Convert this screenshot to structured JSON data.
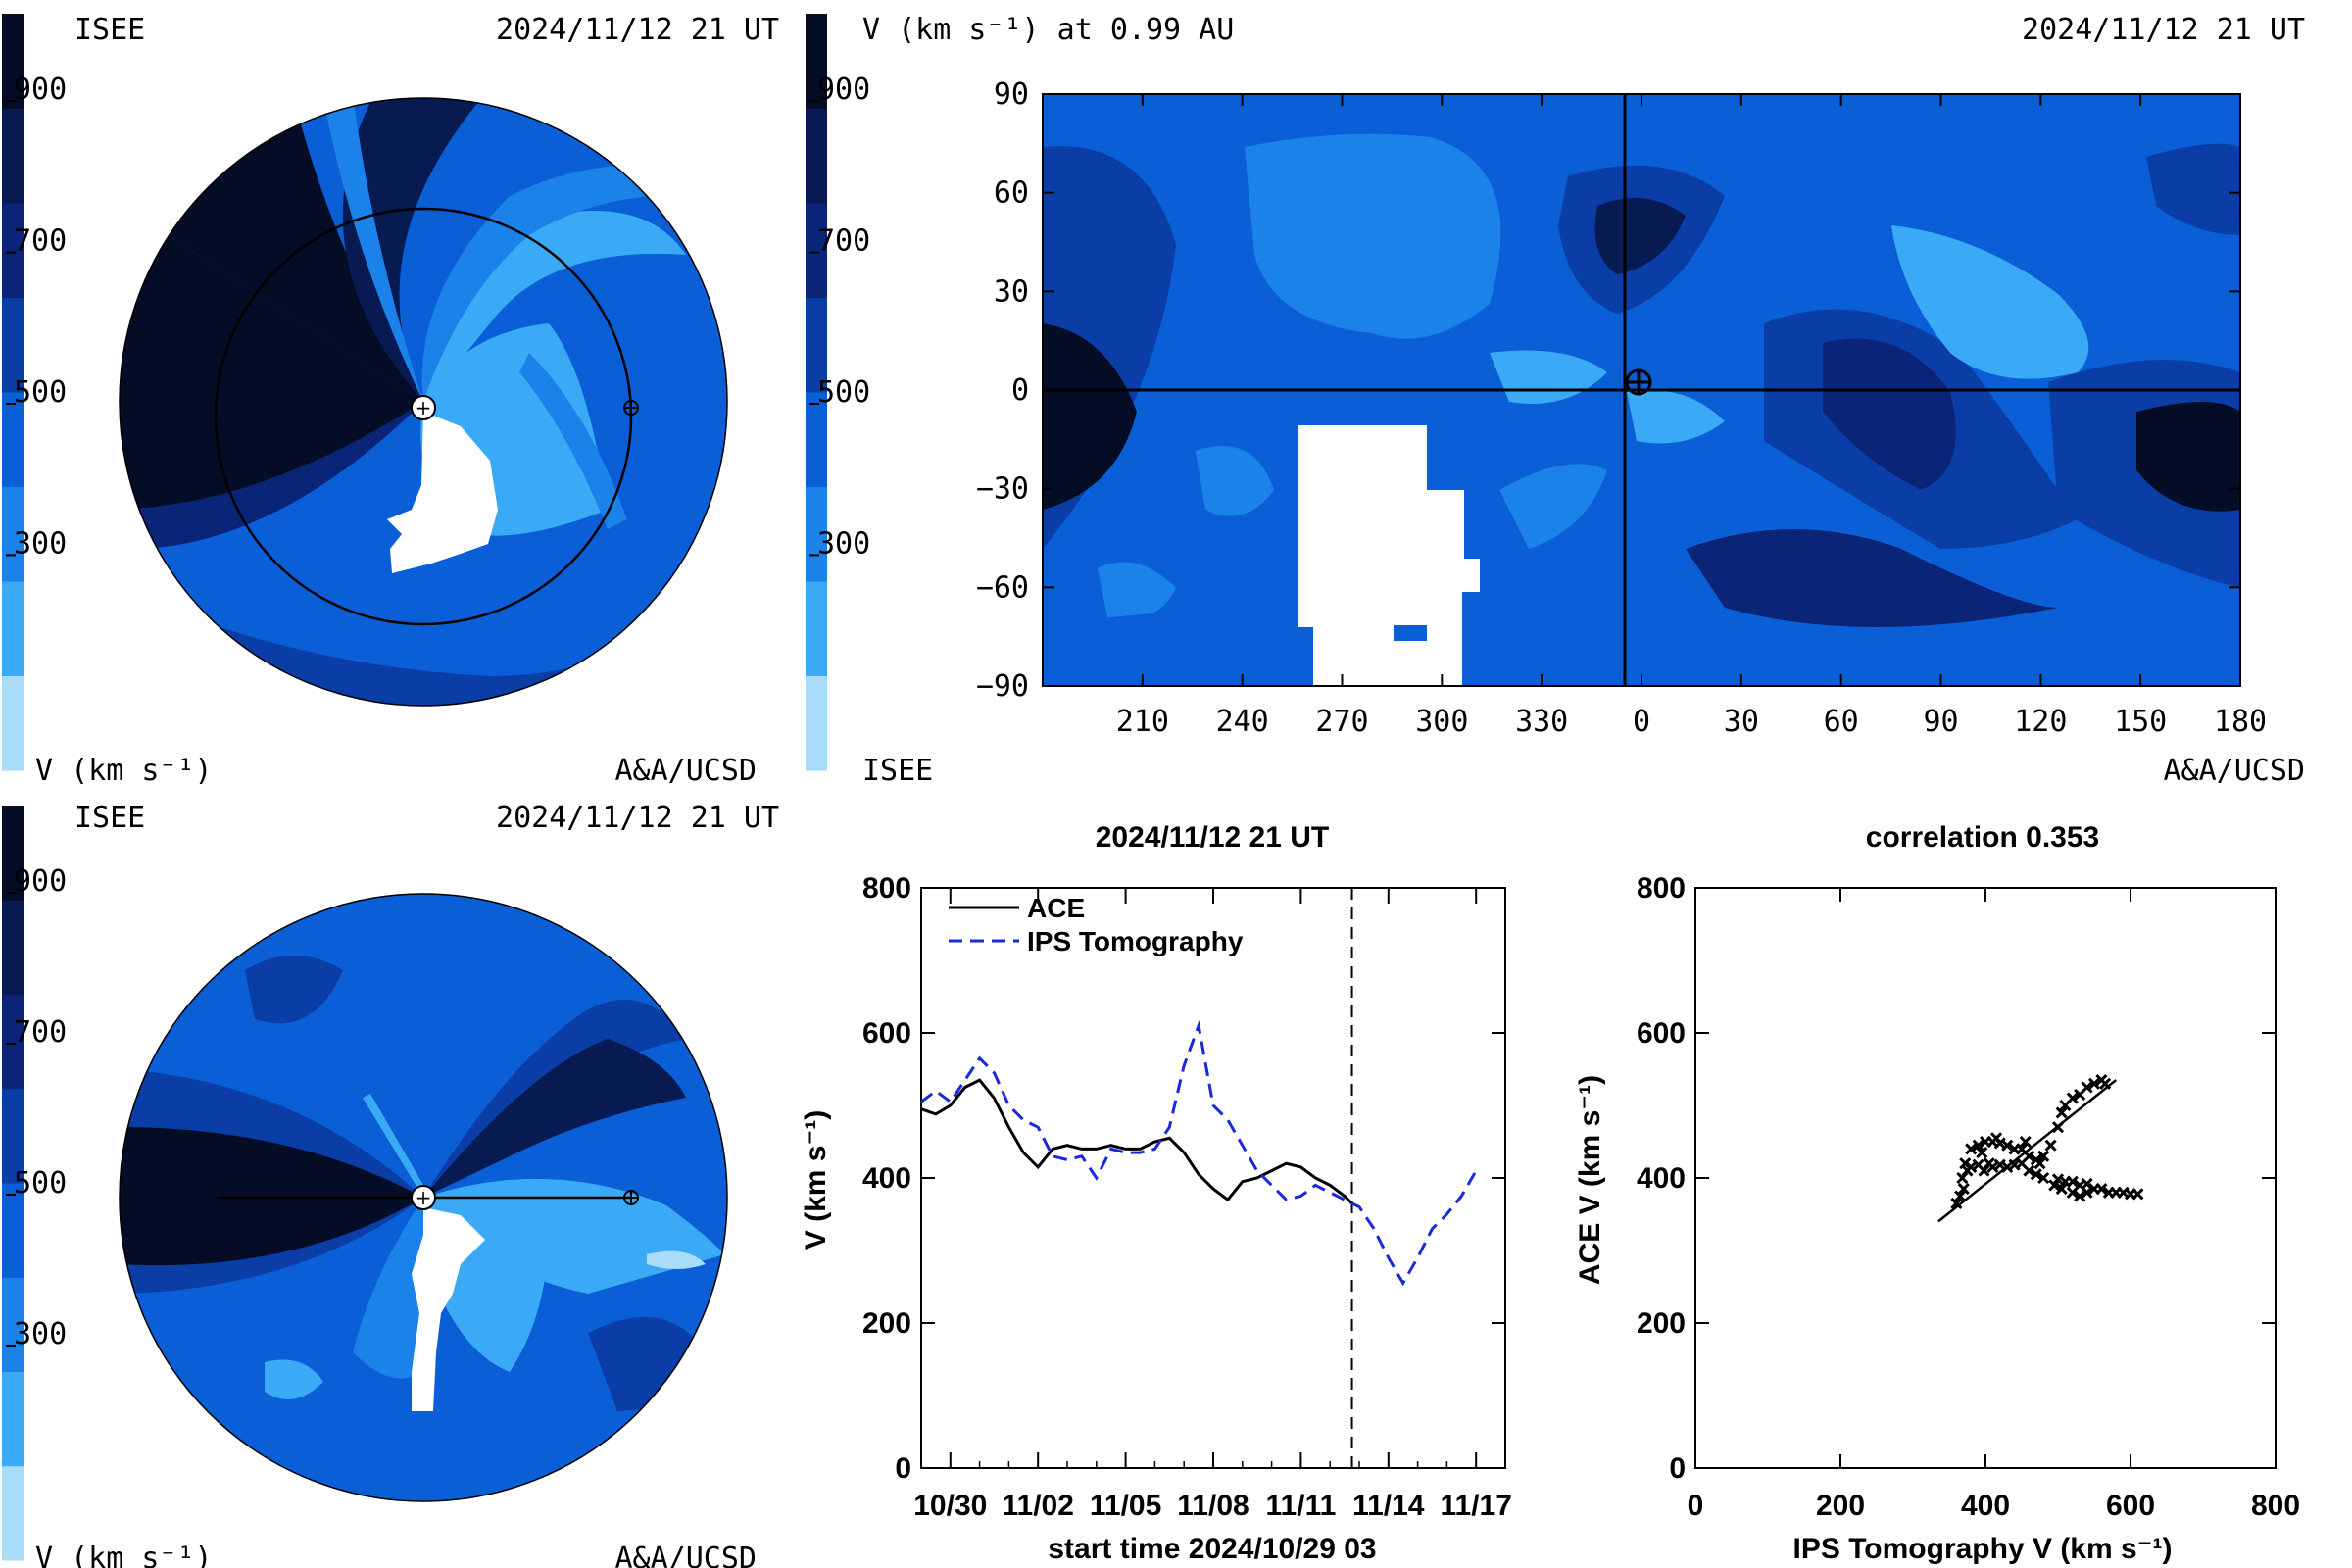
{
  "colors": {
    "scale": [
      "#a8dcfa",
      "#3aaaf6",
      "#1a82e8",
      "#0a5fd6",
      "#0a3ea6",
      "#0a2478",
      "#071a52",
      "#050d26"
    ],
    "fg": "#000000",
    "ips": "#1a2ad8"
  },
  "panels": {
    "top_left": {
      "tag_left": "ISEE",
      "timestamp": "2024/11/12 21 UT",
      "unit": "V (km s⁻¹)",
      "credit": "A&A/UCSD"
    },
    "top_right": {
      "title_left": "V (km s⁻¹) at 0.99 AU",
      "timestamp": "2024/11/12 21 UT",
      "tag_left": "ISEE",
      "credit": "A&A/UCSD"
    },
    "bottom_left": {
      "tag_left": "ISEE",
      "timestamp": "2024/11/12 21 UT",
      "unit": "V (km s⁻¹)",
      "credit": "A&A/UCSD"
    }
  },
  "colorbar_ticks": [
    "900",
    "700",
    "500",
    "300"
  ],
  "chart_data": [
    {
      "type": "heatmap",
      "title": "V (km s⁻¹) at 0.99 AU",
      "xticks": [
        "210",
        "240",
        "270",
        "300",
        "330",
        "0",
        "30",
        "60",
        "90",
        "120",
        "150",
        "180"
      ],
      "yticks": [
        "90",
        "60",
        "30",
        "0",
        "−30",
        "−60",
        "−90"
      ],
      "ylim": [
        -90,
        90
      ]
    },
    {
      "type": "line",
      "title": "2024/11/12 21 UT",
      "xlabel": "start time 2024/10/29 03",
      "ylabel": "V (km s⁻¹)",
      "ylim": [
        0,
        800
      ],
      "xlim": [
        0,
        20
      ],
      "yticks": [
        "0",
        "200",
        "400",
        "600",
        "800"
      ],
      "xticks": [
        {
          "day": 1.0,
          "label": "10/30"
        },
        {
          "day": 4.0,
          "label": "11/02"
        },
        {
          "day": 7.0,
          "label": "11/05"
        },
        {
          "day": 10.0,
          "label": "11/08"
        },
        {
          "day": 13.0,
          "label": "11/11"
        },
        {
          "day": 16.0,
          "label": "11/14"
        },
        {
          "day": 19.0,
          "label": "11/17"
        }
      ],
      "current_time_day": 14.75,
      "legend": "top-left",
      "series": [
        {
          "name": "ACE",
          "x": [
            0,
            0.5,
            1.0,
            1.5,
            2.0,
            2.5,
            3.0,
            3.5,
            4.0,
            4.5,
            5.0,
            5.5,
            6.0,
            6.5,
            7.0,
            7.5,
            8.0,
            8.5,
            9.0,
            9.5,
            10.0,
            10.5,
            11.0,
            11.5,
            12.0,
            12.5,
            13.0,
            13.5,
            14.0,
            14.5,
            14.75
          ],
          "y": [
            495,
            488,
            500,
            525,
            535,
            510,
            470,
            435,
            415,
            440,
            445,
            440,
            440,
            445,
            440,
            440,
            450,
            455,
            435,
            405,
            385,
            370,
            395,
            400,
            410,
            420,
            415,
            400,
            390,
            375,
            365
          ]
        },
        {
          "name": "IPS Tomography",
          "x": [
            0,
            0.5,
            1.0,
            1.5,
            2.0,
            2.5,
            3.0,
            3.5,
            4.0,
            4.5,
            5.0,
            5.5,
            6.0,
            6.5,
            7.0,
            7.5,
            8.0,
            8.5,
            9.0,
            9.5,
            10.0,
            10.5,
            11.0,
            11.5,
            12.0,
            12.5,
            13.0,
            13.5,
            14.0,
            14.5,
            15.0,
            15.5,
            16.0,
            16.5,
            17.0,
            17.5,
            18.0,
            18.5,
            19.0
          ],
          "y": [
            505,
            520,
            505,
            535,
            565,
            545,
            500,
            480,
            470,
            430,
            425,
            430,
            400,
            440,
            435,
            435,
            440,
            470,
            555,
            610,
            500,
            480,
            445,
            410,
            390,
            370,
            375,
            390,
            380,
            370,
            360,
            330,
            290,
            255,
            290,
            330,
            350,
            375,
            410
          ]
        }
      ]
    },
    {
      "type": "scatter",
      "title": "correlation 0.353",
      "xlabel": "IPS Tomography V (km s⁻¹)",
      "ylabel": "ACE V (km s⁻¹)",
      "xlim": [
        0,
        800
      ],
      "ylim": [
        0,
        800
      ],
      "xticks": [
        "0",
        "200",
        "400",
        "600",
        "800"
      ],
      "yticks": [
        "0",
        "200",
        "400",
        "600",
        "800"
      ],
      "points": [
        [
          360,
          365
        ],
        [
          365,
          375
        ],
        [
          370,
          385
        ],
        [
          368,
          400
        ],
        [
          375,
          410
        ],
        [
          372,
          420
        ],
        [
          380,
          415
        ],
        [
          390,
          418
        ],
        [
          398,
          410
        ],
        [
          405,
          420
        ],
        [
          410,
          415
        ],
        [
          420,
          418
        ],
        [
          430,
          415
        ],
        [
          440,
          418
        ],
        [
          450,
          420
        ],
        [
          460,
          410
        ],
        [
          470,
          405
        ],
        [
          480,
          400
        ],
        [
          500,
          398
        ],
        [
          510,
          395
        ],
        [
          520,
          395
        ],
        [
          530,
          390
        ],
        [
          540,
          392
        ],
        [
          550,
          385
        ],
        [
          560,
          385
        ],
        [
          570,
          380
        ],
        [
          580,
          380
        ],
        [
          590,
          380
        ],
        [
          600,
          378
        ],
        [
          610,
          378
        ],
        [
          520,
          380
        ],
        [
          530,
          375
        ],
        [
          540,
          380
        ],
        [
          505,
          385
        ],
        [
          495,
          390
        ],
        [
          380,
          440
        ],
        [
          390,
          445
        ],
        [
          400,
          450
        ],
        [
          410,
          450
        ],
        [
          420,
          448
        ],
        [
          430,
          445
        ],
        [
          440,
          440
        ],
        [
          450,
          440
        ],
        [
          460,
          430
        ],
        [
          470,
          425
        ],
        [
          480,
          430
        ],
        [
          490,
          445
        ],
        [
          500,
          470
        ],
        [
          505,
          490
        ],
        [
          510,
          500
        ],
        [
          520,
          510
        ],
        [
          530,
          515
        ],
        [
          540,
          525
        ],
        [
          550,
          530
        ],
        [
          560,
          535
        ],
        [
          565,
          530
        ],
        [
          395,
          435
        ],
        [
          415,
          455
        ],
        [
          455,
          450
        ],
        [
          475,
          420
        ]
      ],
      "fit": {
        "x": [
          335,
          580
        ],
        "y": [
          340,
          535
        ]
      }
    }
  ]
}
